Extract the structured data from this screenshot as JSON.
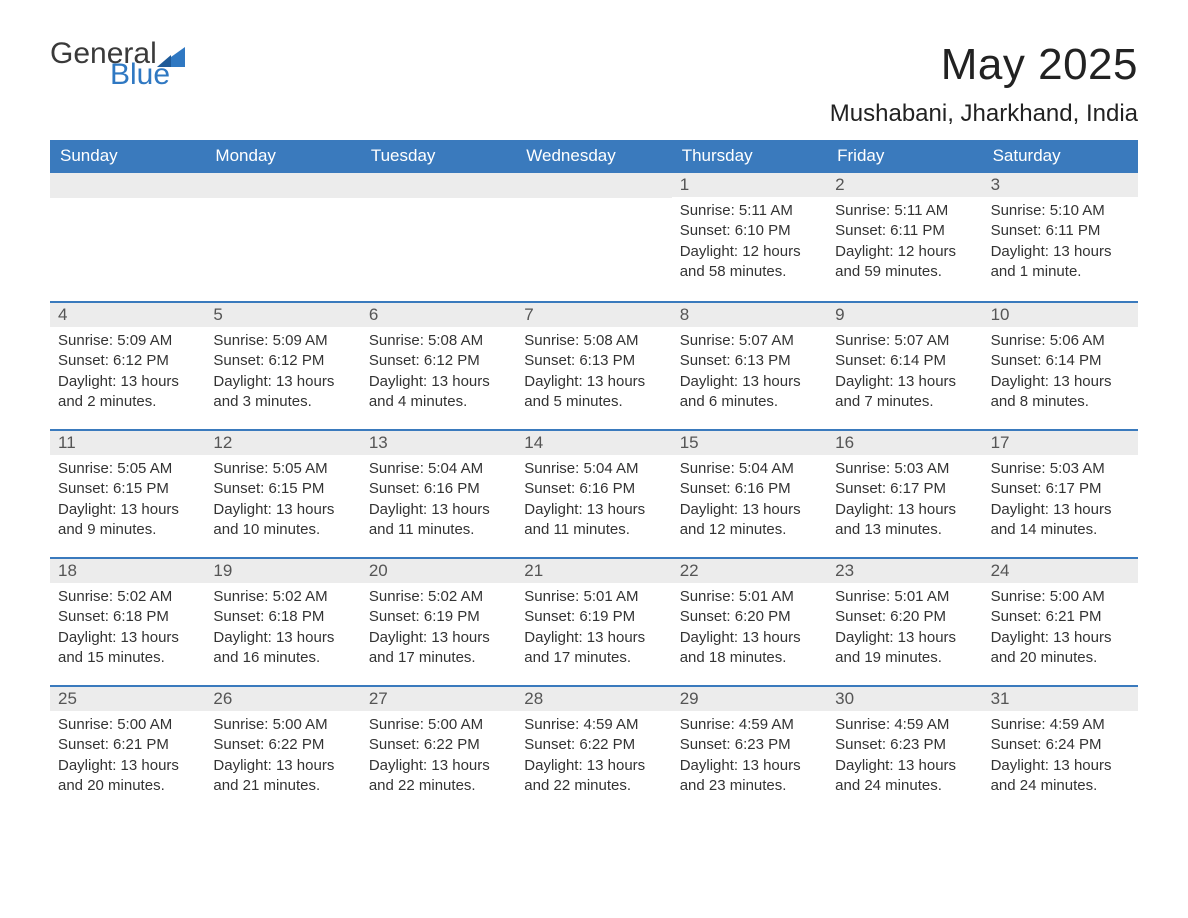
{
  "logo": {
    "line1": "General",
    "line2": "Blue"
  },
  "title": "May 2025",
  "location": "Mushabani, Jharkhand, India",
  "colors": {
    "header_bg": "#3a7abd",
    "header_fg": "#ffffff",
    "daynum_bg": "#ececec",
    "daynum_fg": "#555555",
    "text": "#333333",
    "rule": "#3a7abd",
    "logo_blue": "#2f78c2"
  },
  "weekdays": [
    "Sunday",
    "Monday",
    "Tuesday",
    "Wednesday",
    "Thursday",
    "Friday",
    "Saturday"
  ],
  "weeks": [
    [
      {
        "empty": true
      },
      {
        "empty": true
      },
      {
        "empty": true
      },
      {
        "empty": true
      },
      {
        "day": "1",
        "sunrise": "Sunrise: 5:11 AM",
        "sunset": "Sunset: 6:10 PM",
        "dl1": "Daylight: 12 hours",
        "dl2": "and 58 minutes."
      },
      {
        "day": "2",
        "sunrise": "Sunrise: 5:11 AM",
        "sunset": "Sunset: 6:11 PM",
        "dl1": "Daylight: 12 hours",
        "dl2": "and 59 minutes."
      },
      {
        "day": "3",
        "sunrise": "Sunrise: 5:10 AM",
        "sunset": "Sunset: 6:11 PM",
        "dl1": "Daylight: 13 hours",
        "dl2": "and 1 minute."
      }
    ],
    [
      {
        "day": "4",
        "sunrise": "Sunrise: 5:09 AM",
        "sunset": "Sunset: 6:12 PM",
        "dl1": "Daylight: 13 hours",
        "dl2": "and 2 minutes."
      },
      {
        "day": "5",
        "sunrise": "Sunrise: 5:09 AM",
        "sunset": "Sunset: 6:12 PM",
        "dl1": "Daylight: 13 hours",
        "dl2": "and 3 minutes."
      },
      {
        "day": "6",
        "sunrise": "Sunrise: 5:08 AM",
        "sunset": "Sunset: 6:12 PM",
        "dl1": "Daylight: 13 hours",
        "dl2": "and 4 minutes."
      },
      {
        "day": "7",
        "sunrise": "Sunrise: 5:08 AM",
        "sunset": "Sunset: 6:13 PM",
        "dl1": "Daylight: 13 hours",
        "dl2": "and 5 minutes."
      },
      {
        "day": "8",
        "sunrise": "Sunrise: 5:07 AM",
        "sunset": "Sunset: 6:13 PM",
        "dl1": "Daylight: 13 hours",
        "dl2": "and 6 minutes."
      },
      {
        "day": "9",
        "sunrise": "Sunrise: 5:07 AM",
        "sunset": "Sunset: 6:14 PM",
        "dl1": "Daylight: 13 hours",
        "dl2": "and 7 minutes."
      },
      {
        "day": "10",
        "sunrise": "Sunrise: 5:06 AM",
        "sunset": "Sunset: 6:14 PM",
        "dl1": "Daylight: 13 hours",
        "dl2": "and 8 minutes."
      }
    ],
    [
      {
        "day": "11",
        "sunrise": "Sunrise: 5:05 AM",
        "sunset": "Sunset: 6:15 PM",
        "dl1": "Daylight: 13 hours",
        "dl2": "and 9 minutes."
      },
      {
        "day": "12",
        "sunrise": "Sunrise: 5:05 AM",
        "sunset": "Sunset: 6:15 PM",
        "dl1": "Daylight: 13 hours",
        "dl2": "and 10 minutes."
      },
      {
        "day": "13",
        "sunrise": "Sunrise: 5:04 AM",
        "sunset": "Sunset: 6:16 PM",
        "dl1": "Daylight: 13 hours",
        "dl2": "and 11 minutes."
      },
      {
        "day": "14",
        "sunrise": "Sunrise: 5:04 AM",
        "sunset": "Sunset: 6:16 PM",
        "dl1": "Daylight: 13 hours",
        "dl2": "and 11 minutes."
      },
      {
        "day": "15",
        "sunrise": "Sunrise: 5:04 AM",
        "sunset": "Sunset: 6:16 PM",
        "dl1": "Daylight: 13 hours",
        "dl2": "and 12 minutes."
      },
      {
        "day": "16",
        "sunrise": "Sunrise: 5:03 AM",
        "sunset": "Sunset: 6:17 PM",
        "dl1": "Daylight: 13 hours",
        "dl2": "and 13 minutes."
      },
      {
        "day": "17",
        "sunrise": "Sunrise: 5:03 AM",
        "sunset": "Sunset: 6:17 PM",
        "dl1": "Daylight: 13 hours",
        "dl2": "and 14 minutes."
      }
    ],
    [
      {
        "day": "18",
        "sunrise": "Sunrise: 5:02 AM",
        "sunset": "Sunset: 6:18 PM",
        "dl1": "Daylight: 13 hours",
        "dl2": "and 15 minutes."
      },
      {
        "day": "19",
        "sunrise": "Sunrise: 5:02 AM",
        "sunset": "Sunset: 6:18 PM",
        "dl1": "Daylight: 13 hours",
        "dl2": "and 16 minutes."
      },
      {
        "day": "20",
        "sunrise": "Sunrise: 5:02 AM",
        "sunset": "Sunset: 6:19 PM",
        "dl1": "Daylight: 13 hours",
        "dl2": "and 17 minutes."
      },
      {
        "day": "21",
        "sunrise": "Sunrise: 5:01 AM",
        "sunset": "Sunset: 6:19 PM",
        "dl1": "Daylight: 13 hours",
        "dl2": "and 17 minutes."
      },
      {
        "day": "22",
        "sunrise": "Sunrise: 5:01 AM",
        "sunset": "Sunset: 6:20 PM",
        "dl1": "Daylight: 13 hours",
        "dl2": "and 18 minutes."
      },
      {
        "day": "23",
        "sunrise": "Sunrise: 5:01 AM",
        "sunset": "Sunset: 6:20 PM",
        "dl1": "Daylight: 13 hours",
        "dl2": "and 19 minutes."
      },
      {
        "day": "24",
        "sunrise": "Sunrise: 5:00 AM",
        "sunset": "Sunset: 6:21 PM",
        "dl1": "Daylight: 13 hours",
        "dl2": "and 20 minutes."
      }
    ],
    [
      {
        "day": "25",
        "sunrise": "Sunrise: 5:00 AM",
        "sunset": "Sunset: 6:21 PM",
        "dl1": "Daylight: 13 hours",
        "dl2": "and 20 minutes."
      },
      {
        "day": "26",
        "sunrise": "Sunrise: 5:00 AM",
        "sunset": "Sunset: 6:22 PM",
        "dl1": "Daylight: 13 hours",
        "dl2": "and 21 minutes."
      },
      {
        "day": "27",
        "sunrise": "Sunrise: 5:00 AM",
        "sunset": "Sunset: 6:22 PM",
        "dl1": "Daylight: 13 hours",
        "dl2": "and 22 minutes."
      },
      {
        "day": "28",
        "sunrise": "Sunrise: 4:59 AM",
        "sunset": "Sunset: 6:22 PM",
        "dl1": "Daylight: 13 hours",
        "dl2": "and 22 minutes."
      },
      {
        "day": "29",
        "sunrise": "Sunrise: 4:59 AM",
        "sunset": "Sunset: 6:23 PM",
        "dl1": "Daylight: 13 hours",
        "dl2": "and 23 minutes."
      },
      {
        "day": "30",
        "sunrise": "Sunrise: 4:59 AM",
        "sunset": "Sunset: 6:23 PM",
        "dl1": "Daylight: 13 hours",
        "dl2": "and 24 minutes."
      },
      {
        "day": "31",
        "sunrise": "Sunrise: 4:59 AM",
        "sunset": "Sunset: 6:24 PM",
        "dl1": "Daylight: 13 hours",
        "dl2": "and 24 minutes."
      }
    ]
  ]
}
